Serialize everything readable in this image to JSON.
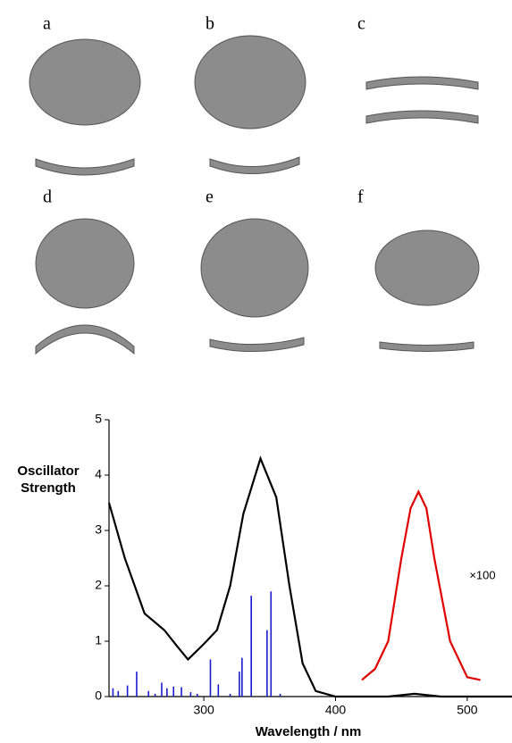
{
  "panels": [
    "a",
    "b",
    "c",
    "d",
    "e",
    "f"
  ],
  "chart_data": {
    "type": "line",
    "y_label": "Oscillator Strength",
    "x_label": "Wavelength / nm",
    "annotation": "×100",
    "xlim": [
      228,
      534
    ],
    "ylim": [
      0,
      5
    ],
    "xticks": [
      300,
      400,
      500
    ],
    "yticks": [
      0,
      1,
      2,
      3,
      4,
      5
    ],
    "series": [
      {
        "color": "#000000",
        "style": "line",
        "x": [
          228,
          240,
          255,
          270,
          280,
          288,
          300,
          310,
          320,
          330,
          343,
          355,
          365,
          375,
          385,
          400,
          440,
          460,
          480,
          534
        ],
        "values": [
          3.5,
          2.5,
          1.5,
          1.2,
          0.9,
          0.67,
          0.95,
          1.2,
          2.0,
          3.3,
          4.3,
          3.6,
          2.0,
          0.6,
          0.1,
          0,
          0,
          0.05,
          0,
          0
        ]
      },
      {
        "color": "#e00000",
        "style": "line",
        "x": [
          420,
          430,
          440,
          450,
          457,
          463,
          469,
          475,
          487,
          500,
          510
        ],
        "values": [
          0.3,
          0.5,
          1.0,
          2.5,
          3.4,
          3.7,
          3.4,
          2.5,
          1.0,
          0.35,
          0.3
        ]
      },
      {
        "color": "#1a1ad0",
        "style": "stick",
        "x": [
          231,
          235,
          242,
          249,
          258,
          263,
          268,
          272,
          277,
          283,
          290,
          295,
          305,
          311,
          320,
          327,
          329,
          336,
          348,
          351,
          358
        ],
        "values": [
          0.15,
          0.1,
          0.2,
          0.45,
          0.1,
          0.05,
          0.25,
          0.15,
          0.18,
          0.17,
          0.08,
          0.05,
          0.67,
          0.22,
          0.05,
          0.45,
          0.7,
          1.82,
          1.2,
          1.9,
          0.05
        ]
      }
    ]
  }
}
